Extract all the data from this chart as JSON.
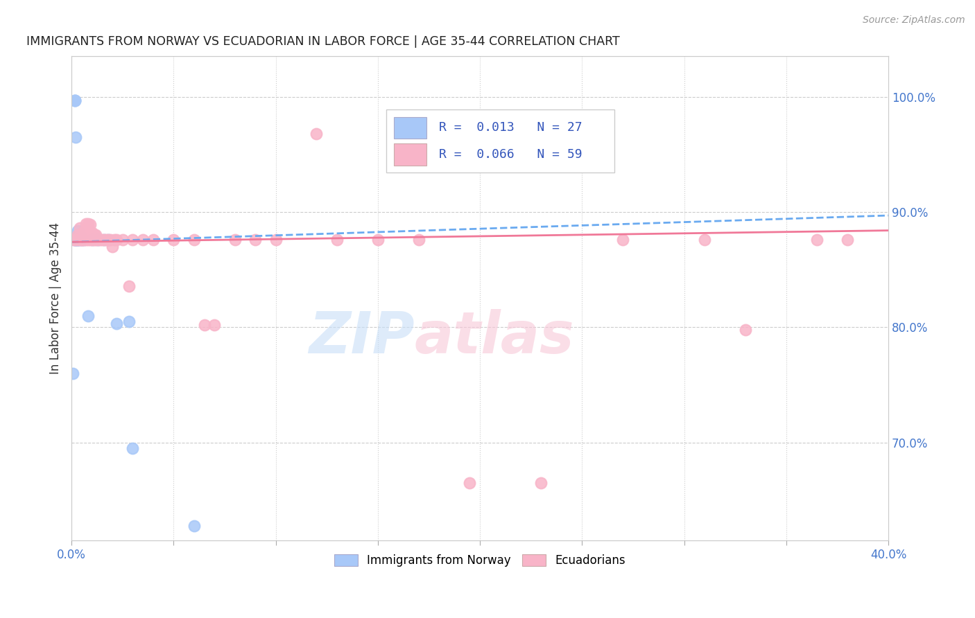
{
  "title": "IMMIGRANTS FROM NORWAY VS ECUADORIAN IN LABOR FORCE | AGE 35-44 CORRELATION CHART",
  "source": "Source: ZipAtlas.com",
  "ylabel": "In Labor Force | Age 35-44",
  "xlim": [
    0.0,
    0.4
  ],
  "ylim": [
    0.615,
    1.035
  ],
  "norway_color": "#a8c8f8",
  "ecuador_color": "#f8b4c8",
  "norway_line_color": "#6aaaf0",
  "ecuador_line_color": "#f07898",
  "norway_R": 0.013,
  "norway_N": 27,
  "ecuador_R": 0.066,
  "ecuador_N": 59,
  "norway_x": [
    0.0008,
    0.0012,
    0.0015,
    0.0015,
    0.0015,
    0.002,
    0.002,
    0.002,
    0.002,
    0.003,
    0.003,
    0.003,
    0.003,
    0.003,
    0.004,
    0.004,
    0.005,
    0.006,
    0.008,
    0.01,
    0.013,
    0.016,
    0.018,
    0.022,
    0.028,
    0.03,
    0.06
  ],
  "norway_y": [
    0.76,
    0.876,
    0.997,
    0.997,
    0.997,
    0.965,
    0.876,
    0.876,
    0.876,
    0.876,
    0.876,
    0.876,
    0.88,
    0.884,
    0.876,
    0.88,
    0.876,
    0.876,
    0.81,
    0.876,
    0.876,
    0.876,
    0.876,
    0.803,
    0.805,
    0.695,
    0.628
  ],
  "ecuador_x": [
    0.001,
    0.002,
    0.003,
    0.003,
    0.004,
    0.004,
    0.004,
    0.005,
    0.005,
    0.006,
    0.006,
    0.007,
    0.007,
    0.007,
    0.008,
    0.008,
    0.008,
    0.009,
    0.009,
    0.009,
    0.01,
    0.01,
    0.011,
    0.011,
    0.012,
    0.012,
    0.013,
    0.014,
    0.015,
    0.016,
    0.017,
    0.018,
    0.019,
    0.02,
    0.021,
    0.022,
    0.025,
    0.028,
    0.03,
    0.035,
    0.04,
    0.05,
    0.06,
    0.065,
    0.07,
    0.08,
    0.09,
    0.1,
    0.12,
    0.13,
    0.15,
    0.17,
    0.195,
    0.23,
    0.27,
    0.31,
    0.33,
    0.365,
    0.38
  ],
  "ecuador_y": [
    0.876,
    0.876,
    0.88,
    0.876,
    0.88,
    0.876,
    0.886,
    0.876,
    0.876,
    0.876,
    0.883,
    0.876,
    0.885,
    0.89,
    0.89,
    0.876,
    0.888,
    0.876,
    0.88,
    0.889,
    0.882,
    0.876,
    0.876,
    0.88,
    0.88,
    0.876,
    0.876,
    0.876,
    0.876,
    0.876,
    0.876,
    0.876,
    0.876,
    0.87,
    0.876,
    0.876,
    0.876,
    0.836,
    0.876,
    0.876,
    0.876,
    0.876,
    0.876,
    0.802,
    0.802,
    0.876,
    0.876,
    0.876,
    0.968,
    0.876,
    0.876,
    0.876,
    0.665,
    0.665,
    0.876,
    0.876,
    0.798,
    0.876,
    0.876
  ],
  "watermark_zip": "ZIP",
  "watermark_atlas": "atlas",
  "background_color": "#ffffff"
}
